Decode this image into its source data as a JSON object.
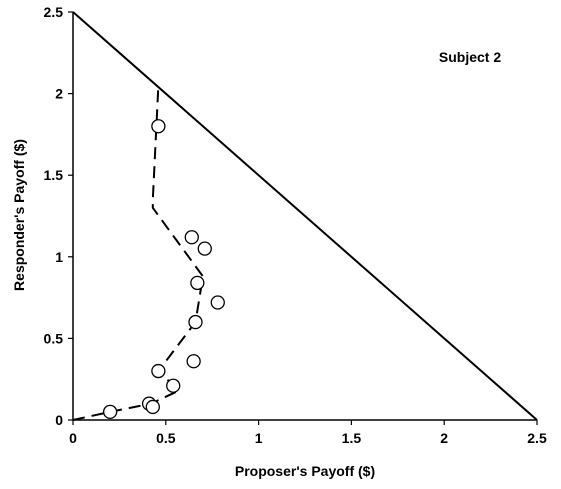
{
  "chart_data": {
    "type": "scatter",
    "annotation": "Subject 2",
    "xlabel": "Proposer's Payoff ($)",
    "ylabel": "Responder's Payoff ($)",
    "xlim": [
      0,
      2.5
    ],
    "ylim": [
      0,
      2.5
    ],
    "xticks": [
      0,
      0.5,
      1,
      1.5,
      2,
      2.5
    ],
    "xtick_labels": [
      "0",
      "0.5",
      "1",
      "1.5",
      "2",
      "2.5"
    ],
    "yticks": [
      0,
      0.5,
      1,
      1.5,
      2,
      2.5
    ],
    "ytick_labels": [
      "0",
      "0.5",
      "1",
      "1.5",
      "2",
      "2.5"
    ],
    "grid": false,
    "legend": "none",
    "series": [
      {
        "style": "circles",
        "points": [
          [
            0.2,
            0.05
          ],
          [
            0.41,
            0.1
          ],
          [
            0.43,
            0.08
          ],
          [
            0.54,
            0.21
          ],
          [
            0.46,
            0.3
          ],
          [
            0.65,
            0.36
          ],
          [
            0.66,
            0.6
          ],
          [
            0.78,
            0.72
          ],
          [
            0.67,
            0.84
          ],
          [
            0.64,
            1.12
          ],
          [
            0.71,
            1.05
          ],
          [
            0.46,
            1.8
          ]
        ]
      },
      {
        "style": "dashed-line",
        "points": [
          [
            0.0,
            0.0
          ],
          [
            0.2,
            0.05
          ],
          [
            0.42,
            0.1
          ],
          [
            0.57,
            0.18
          ],
          [
            0.46,
            0.3
          ],
          [
            0.66,
            0.6
          ],
          [
            0.7,
            0.88
          ],
          [
            0.43,
            1.3
          ],
          [
            0.43,
            1.35
          ],
          [
            0.46,
            2.05
          ]
        ]
      },
      {
        "style": "solid-line",
        "points": [
          [
            0,
            2.5
          ],
          [
            2.5,
            0
          ]
        ]
      }
    ],
    "colors": {
      "axis": "#000000",
      "markers_fill": "#ffffff",
      "markers_stroke": "#000000",
      "background": "#ffffff"
    }
  }
}
